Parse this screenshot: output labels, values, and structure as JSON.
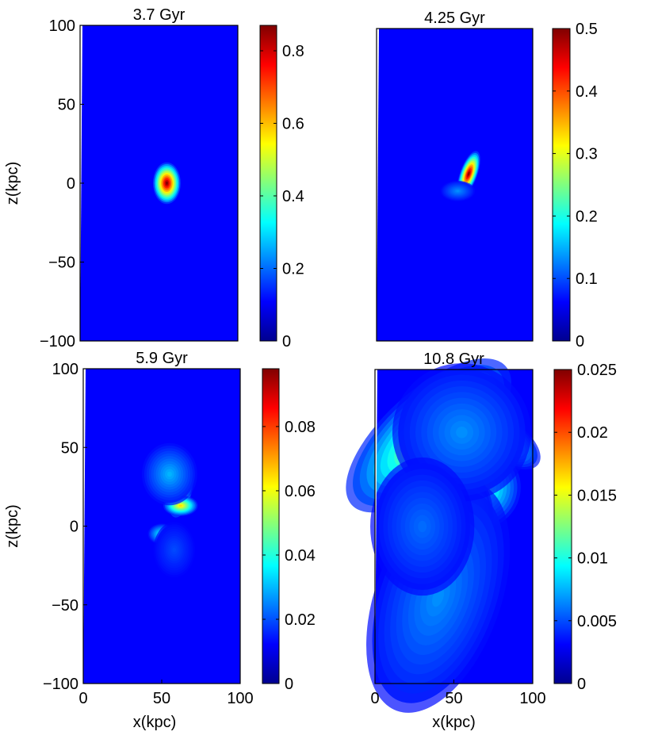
{
  "chart_data": [
    {
      "type": "heatmap",
      "title": "3.7 Gyr",
      "xlabel": "",
      "ylabel": "z(kpc)",
      "xlim": [
        0,
        100
      ],
      "ylim": [
        -100,
        100
      ],
      "x_ticks": [],
      "y_ticks": [
        "100",
        "50",
        "0",
        "−50",
        "−100"
      ],
      "colorbar": {
        "range": [
          0,
          0.87
        ],
        "ticks": [
          "0",
          "0.2",
          "0.4",
          "0.6",
          "0.8"
        ],
        "tick_values": [
          0,
          0.2,
          0.4,
          0.6,
          0.8
        ]
      },
      "blobs": [
        {
          "x": 55,
          "z": 0,
          "sx": 4,
          "sz": 6,
          "angle": 0,
          "peak": 0.87
        }
      ]
    },
    {
      "type": "heatmap",
      "title": "4.25 Gyr",
      "xlabel": "",
      "ylabel": "",
      "xlim": [
        0,
        100
      ],
      "ylim": [
        -100,
        100
      ],
      "x_ticks": [],
      "y_ticks": [],
      "colorbar": {
        "range": [
          0,
          0.5
        ],
        "ticks": [
          "0",
          "0.1",
          "0.2",
          "0.3",
          "0.4",
          "0.5"
        ],
        "tick_values": [
          0,
          0.1,
          0.2,
          0.3,
          0.4,
          0.5
        ]
      },
      "blobs": [
        {
          "x": 59,
          "z": 7,
          "sx": 2.5,
          "sz": 7,
          "angle": 20,
          "peak": 0.5
        },
        {
          "x": 52,
          "z": -4,
          "sx": 5,
          "sz": 3,
          "angle": 0,
          "peak": 0.08
        }
      ]
    },
    {
      "type": "heatmap",
      "title": "5.9 Gyr",
      "xlabel": "",
      "ylabel": "z(kpc)",
      "xlim": [
        0,
        100
      ],
      "ylim": [
        -100,
        100
      ],
      "x_ticks": [
        "0",
        "50",
        "100"
      ],
      "y_ticks": [
        "100",
        "50",
        "0",
        "−50",
        "−100"
      ],
      "colorbar": {
        "range": [
          0,
          0.098
        ],
        "ticks": [
          "0",
          "0.02",
          "0.04",
          "0.06",
          "0.08"
        ],
        "tick_values": [
          0,
          0.02,
          0.04,
          0.06,
          0.08
        ]
      },
      "blobs": [
        {
          "x": 62,
          "z": 25,
          "sx": 3.5,
          "sz": 9,
          "angle": 10,
          "peak": 0.098
        },
        {
          "x": 62,
          "z": 13,
          "sx": 5,
          "sz": 3,
          "angle": 0,
          "peak": 0.06
        },
        {
          "x": 55,
          "z": 33,
          "sx": 8,
          "sz": 9,
          "angle": 0,
          "peak": 0.02
        },
        {
          "x": 50,
          "z": -5,
          "sx": 4,
          "sz": 3,
          "angle": 0,
          "peak": 0.03
        },
        {
          "x": 58,
          "z": -15,
          "sx": 6,
          "sz": 8,
          "angle": 0,
          "peak": 0.008
        }
      ]
    },
    {
      "type": "heatmap",
      "title": "10.8 Gyr",
      "xlabel": "x(kpc)",
      "ylabel": "",
      "xlim": [
        0,
        100
      ],
      "ylim": [
        -100,
        100
      ],
      "x_ticks": [
        "0",
        "50",
        "100"
      ],
      "y_ticks": [],
      "colorbar": {
        "range": [
          0,
          0.025
        ],
        "ticks": [
          "0",
          "0.005",
          "0.01",
          "0.015",
          "0.02",
          "0.025"
        ],
        "tick_values": [
          0,
          0.005,
          0.01,
          0.015,
          0.02,
          0.025
        ]
      },
      "blobs": [
        {
          "x": 32,
          "z": 63,
          "sx": 4.5,
          "sz": 19,
          "angle": 52,
          "peak": 0.025
        },
        {
          "x": 34,
          "z": 58,
          "sx": 13,
          "sz": 30,
          "angle": 48,
          "peak": 0.013
        },
        {
          "x": 48,
          "z": 40,
          "sx": 3,
          "sz": 8,
          "angle": 0,
          "peak": 0.02
        },
        {
          "x": 52,
          "z": 30,
          "sx": 8,
          "sz": 25,
          "angle": 0,
          "peak": 0.013
        },
        {
          "x": 76,
          "z": 30,
          "sx": 6,
          "sz": 10,
          "angle": 0,
          "peak": 0.016
        },
        {
          "x": 66,
          "z": 25,
          "sx": 12,
          "sz": 12,
          "angle": 0,
          "peak": 0.011
        },
        {
          "x": 48,
          "z": 12,
          "sx": 8,
          "sz": 8,
          "angle": 0,
          "peak": 0.013
        },
        {
          "x": 62,
          "z": 5,
          "sx": 6,
          "sz": 12,
          "angle": 0,
          "peak": 0.01
        },
        {
          "x": 82,
          "z": 55,
          "sx": 12,
          "sz": 6,
          "angle": 35,
          "peak": 0.008
        },
        {
          "x": 40,
          "z": -45,
          "sx": 18,
          "sz": 35,
          "angle": 20,
          "peak": 0.004
        },
        {
          "x": 55,
          "z": 60,
          "sx": 20,
          "sz": 20,
          "angle": 0,
          "peak": 0.004
        },
        {
          "x": 30,
          "z": 0,
          "sx": 15,
          "sz": 20,
          "angle": 0,
          "peak": 0.003
        }
      ]
    }
  ]
}
